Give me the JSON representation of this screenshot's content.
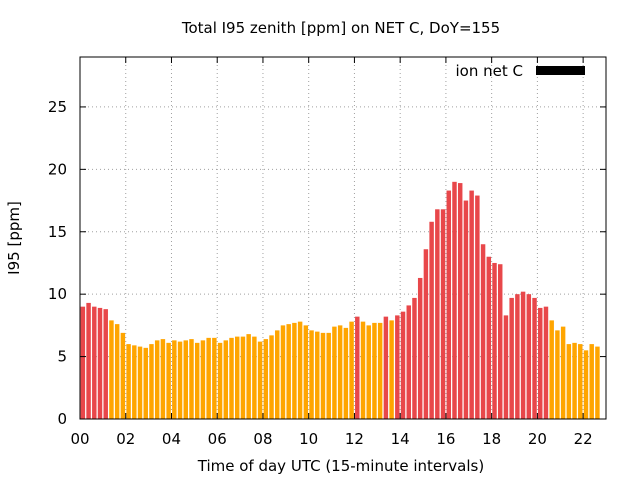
{
  "chart_data": {
    "type": "bar",
    "title": "Total I95 zenith [ppm] on NET C, DoY=155",
    "xlabel": "Time of day UTC (15-minute intervals)",
    "ylabel": "I95 [ppm]",
    "xlim": [
      0,
      23
    ],
    "ylim": [
      0,
      29
    ],
    "x_ticks": [
      "00",
      "02",
      "04",
      "06",
      "08",
      "10",
      "12",
      "14",
      "16",
      "18",
      "20",
      "22"
    ],
    "x_tick_values": [
      0,
      2,
      4,
      6,
      8,
      10,
      12,
      14,
      16,
      18,
      20,
      22
    ],
    "y_ticks": [
      "0",
      "5",
      "10",
      "15",
      "20",
      "25"
    ],
    "y_tick_values": [
      0,
      5,
      10,
      15,
      20,
      25
    ],
    "grid": true,
    "legend": {
      "label": "ion net C",
      "color": "#000000",
      "placement": "top-right"
    },
    "interval_hours": 0.25,
    "threshold": 8,
    "colors": {
      "below_threshold": "#FFA500",
      "above_threshold": "#E8474A"
    },
    "values": [
      9.0,
      9.3,
      9.0,
      8.9,
      8.8,
      7.9,
      7.6,
      6.9,
      6.0,
      5.9,
      5.8,
      5.7,
      6.0,
      6.3,
      6.4,
      6.1,
      6.3,
      6.2,
      6.3,
      6.4,
      6.1,
      6.3,
      6.5,
      6.5,
      6.1,
      6.3,
      6.5,
      6.6,
      6.6,
      6.8,
      6.6,
      6.2,
      6.4,
      6.7,
      7.1,
      7.5,
      7.6,
      7.7,
      7.8,
      7.5,
      7.1,
      7.0,
      6.9,
      6.9,
      7.4,
      7.5,
      7.3,
      7.8,
      8.2,
      7.8,
      7.5,
      7.7,
      7.7,
      8.2,
      7.9,
      8.3,
      8.6,
      9.1,
      9.7,
      11.3,
      13.6,
      15.8,
      16.8,
      16.8,
      18.3,
      19.0,
      18.9,
      17.5,
      18.3,
      17.9,
      14.0,
      13.0,
      12.5,
      12.4,
      8.3,
      9.7,
      10.0,
      10.2,
      10.0,
      9.7,
      8.9,
      9.0,
      7.9,
      7.1,
      7.4,
      6.0,
      6.1,
      6.0,
      5.5,
      6.0,
      5.8
    ]
  }
}
